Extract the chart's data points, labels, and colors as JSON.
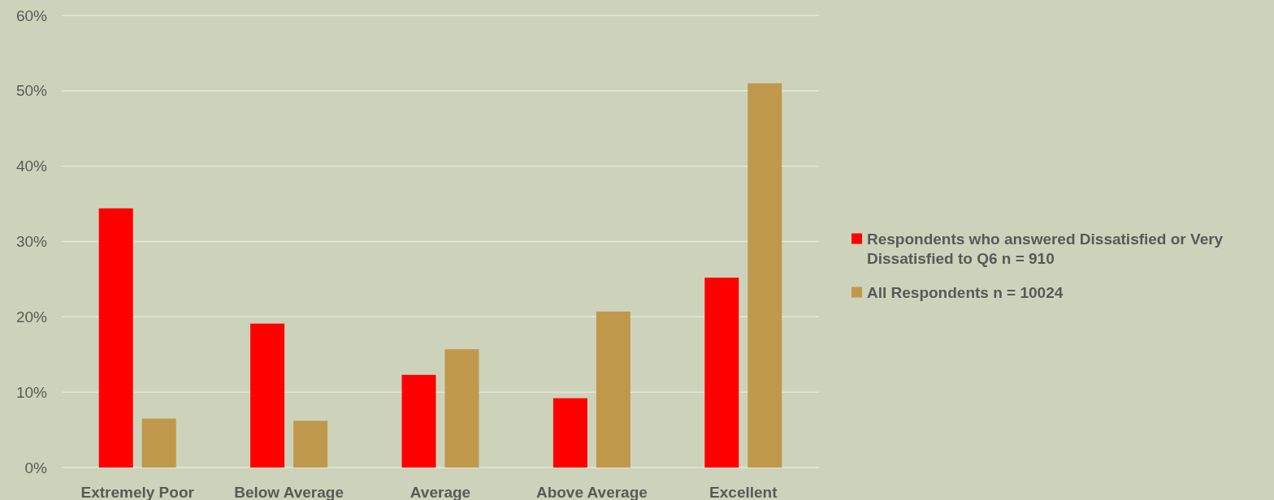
{
  "chart_data": {
    "type": "bar",
    "categories": [
      "Extremely Poor",
      "Below Average",
      "Average",
      "Above Average",
      "Excellent"
    ],
    "series": [
      {
        "name": "Respondents who answered Dissatisfied or Very Dissatisfied to Q6 n = 910",
        "color": "#ff0000",
        "values": [
          34.4,
          19.1,
          12.3,
          9.2,
          25.2
        ]
      },
      {
        "name": "All Respondents n = 10024",
        "color": "#c0984c",
        "values": [
          6.5,
          6.2,
          15.7,
          20.7,
          51.0
        ]
      }
    ],
    "ylim": [
      0,
      60
    ],
    "yticks": [
      {
        "value": 0,
        "label": "0%"
      },
      {
        "value": 10,
        "label": "10%"
      },
      {
        "value": 20,
        "label": "20%"
      },
      {
        "value": 30,
        "label": "30%"
      },
      {
        "value": 40,
        "label": "40%"
      },
      {
        "value": 50,
        "label": "50%"
      },
      {
        "value": 60,
        "label": "60%"
      }
    ],
    "grid": "y",
    "legend": "right"
  }
}
